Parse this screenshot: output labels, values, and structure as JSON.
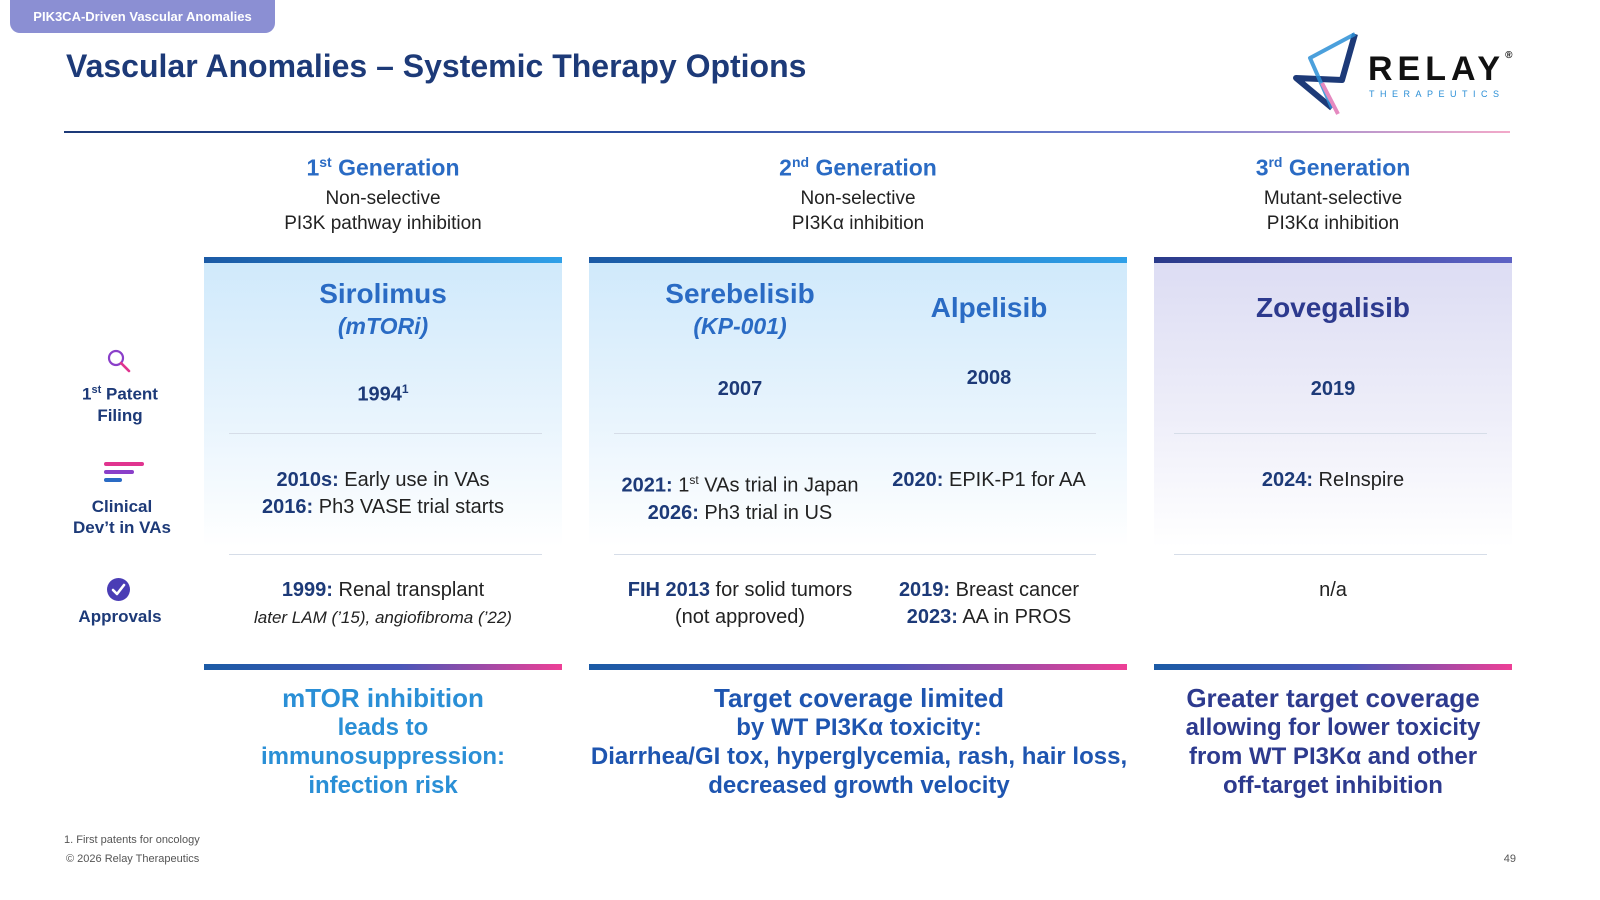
{
  "header": {
    "tag": "PIK3CA-Driven Vascular Anomalies",
    "title": "Vascular Anomalies – Systemic Therapy Options",
    "logo_word": "RELAY",
    "logo_sub": "THERAPEUTICS",
    "logo_mark": "®"
  },
  "generations": [
    {
      "num": "1",
      "suffix": "st",
      "label": "Generation",
      "desc1": "Non-selective",
      "desc2": "PI3K pathway inhibition"
    },
    {
      "num": "2",
      "suffix": "nd",
      "label": "Generation",
      "desc1": "Non-selective",
      "desc2": "PI3Kα inhibition"
    },
    {
      "num": "3",
      "suffix": "rd",
      "label": "Generation",
      "desc1": "Mutant-selective",
      "desc2": "PI3Kα inhibition"
    }
  ],
  "row_labels": {
    "patent_num": "1",
    "patent_suffix": "st",
    "patent_a": "Patent",
    "patent_b": "Filing",
    "clinical_a": "Clinical",
    "clinical_b": "Dev’t in VAs",
    "approvals": "Approvals"
  },
  "drugs": {
    "sirolimus": {
      "name": "Sirolimus",
      "sub": "(mTORi)",
      "patent": "1994",
      "patent_sup": "1",
      "clin1_b": "2010s:",
      "clin1": " Early use in VAs",
      "clin2_b": "2016:",
      "clin2": " Ph3 VASE trial starts",
      "appr1_b": "1999:",
      "appr1": " Renal transplant",
      "appr2": "later LAM (’15), angiofibroma (’22)"
    },
    "serebelisib": {
      "name": "Serebelisib",
      "sub": "(KP-001)",
      "patent": "2007",
      "clin1_b": "2021:",
      "clin1_pre": " 1",
      "clin1_sup": "st",
      "clin1": " VAs trial in Japan",
      "clin2_b": "2026:",
      "clin2": " Ph3 trial in US",
      "appr1_b": "FIH 2013",
      "appr1": " for solid tumors",
      "appr2": "(not approved)"
    },
    "alpelisib": {
      "name": "Alpelisib",
      "patent": "2008",
      "clin1_b": "2020:",
      "clin1": " EPIK-P1 for AA",
      "appr1_b": "2019:",
      "appr1": " Breast cancer",
      "appr2_b": "2023:",
      "appr2": " AA in PROS"
    },
    "zovegalisib": {
      "name": "Zovegalisib",
      "patent": "2019",
      "clin1_b": "2024:",
      "clin1": " ReInspire",
      "appr1": "n/a"
    }
  },
  "bottom": {
    "b1": [
      "mTOR inhibition",
      "leads to",
      "immunosuppression:",
      "infection risk"
    ],
    "b2": [
      "Target coverage limited",
      "by WT PI3Kα toxicity:",
      "Diarrhea/GI tox, hyperglycemia, rash, hair loss,",
      "decreased growth velocity"
    ],
    "b3": [
      "Greater target coverage",
      "allowing for lower toxicity",
      "from WT PI3Kα and other",
      "off-target inhibition"
    ]
  },
  "footer": {
    "footnote": "1. First patents for oncology",
    "copyright": "© 2026 Relay Therapeutics",
    "page": "49"
  },
  "colors": {
    "navy": "#1d3a78",
    "blue": "#2a6bc4",
    "light_blue": "#2a8fd6",
    "purple": "#2d3a8e",
    "magenta": "#ee3f96",
    "tag_bg": "#8b8fd3"
  }
}
